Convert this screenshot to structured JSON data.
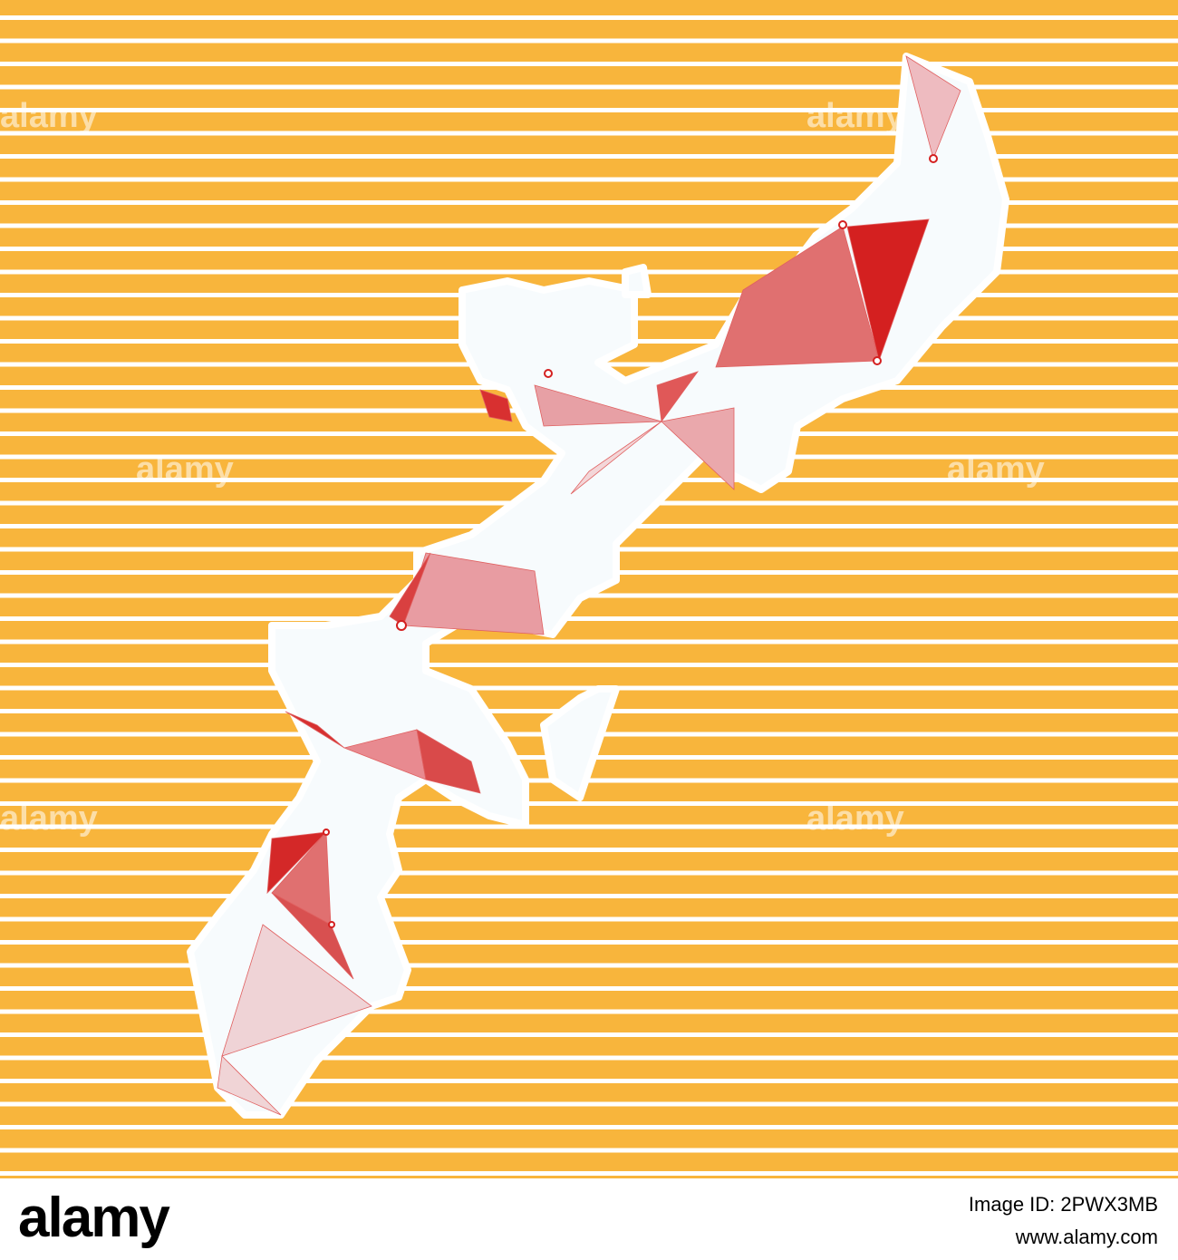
{
  "watermark": "alamy",
  "footer": {
    "logo": "alamy",
    "image_id": "Image ID: 2PWX3MB",
    "url": "www.alamy.com"
  }
}
